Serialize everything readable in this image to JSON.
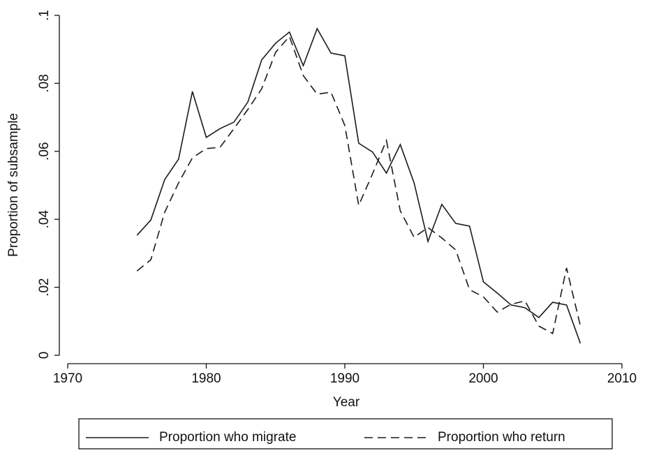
{
  "chart_data": {
    "type": "line",
    "x_label": "Year",
    "y_label": "Proportion of subsample",
    "x": [
      1975,
      1976,
      1977,
      1978,
      1979,
      1980,
      1981,
      1982,
      1983,
      1984,
      1985,
      1986,
      1987,
      1988,
      1989,
      1990,
      1991,
      1992,
      1993,
      1994,
      1995,
      1996,
      1997,
      1998,
      1999,
      2000,
      2001,
      2002,
      2003,
      2004,
      2005,
      2006,
      2007
    ],
    "series": [
      {
        "name": "Proportion who migrate",
        "color": "#1a1a1a",
        "style": "solid",
        "values": [
          0.0353,
          0.0398,
          0.0517,
          0.0577,
          0.0776,
          0.0641,
          0.0667,
          0.0686,
          0.0745,
          0.0869,
          0.0918,
          0.0951,
          0.0852,
          0.0961,
          0.0889,
          0.0881,
          0.0624,
          0.0598,
          0.0536,
          0.062,
          0.0507,
          0.0335,
          0.0444,
          0.0388,
          0.038,
          0.0216,
          0.0183,
          0.0148,
          0.014,
          0.0111,
          0.0156,
          0.0148,
          0.0035
        ]
      },
      {
        "name": "Proportion who return",
        "color": "#1a1a1a",
        "style": "dashed",
        "values": [
          0.0248,
          0.0281,
          0.0421,
          0.0507,
          0.0581,
          0.0608,
          0.0612,
          0.0667,
          0.0723,
          0.0784,
          0.0891,
          0.0938,
          0.0823,
          0.0768,
          0.0774,
          0.0676,
          0.0441,
          0.0534,
          0.0632,
          0.0425,
          0.0347,
          0.0376,
          0.0345,
          0.031,
          0.0193,
          0.0172,
          0.0127,
          0.015,
          0.016,
          0.0086,
          0.0064,
          0.0257,
          0.0086
        ]
      }
    ],
    "xlim": [
      1970,
      2010
    ],
    "xticks": [
      1970,
      1980,
      1990,
      2000,
      2010
    ],
    "ylim": [
      0,
      0.1
    ],
    "yticks": [
      0,
      {
        "value": 0.02,
        "label": ".02"
      },
      {
        "value": 0.04,
        "label": ".04"
      },
      {
        "value": 0.06,
        "label": ".06"
      },
      {
        "value": 0.08,
        "label": ".08"
      },
      {
        "value": 0.1,
        "label": ".1"
      }
    ],
    "legend": "bottom"
  }
}
